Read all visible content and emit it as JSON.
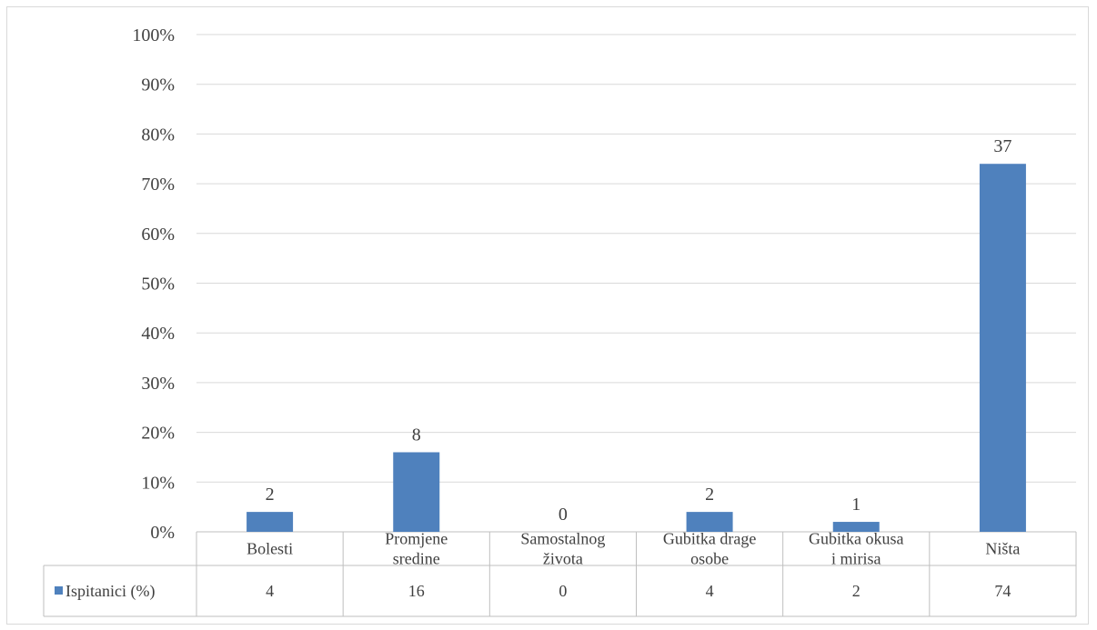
{
  "chart_data": {
    "type": "bar",
    "categories": [
      [
        "Bolesti"
      ],
      [
        "Promjene",
        "sredine"
      ],
      [
        "Samostalnog",
        "života"
      ],
      [
        "Gubitka drage",
        "osobe"
      ],
      [
        "Gubitka okusa",
        "i mirisa"
      ],
      [
        "Ništa"
      ]
    ],
    "series": [
      {
        "name": "Ispitanici (%)",
        "values": [
          4,
          16,
          0,
          4,
          2,
          74
        ],
        "data_labels": [
          "2",
          "8",
          "0",
          "2",
          "1",
          "37"
        ],
        "table_values": [
          "4",
          "16",
          "0",
          "4",
          "2",
          "74"
        ],
        "color": "#4f81bd"
      }
    ],
    "ylim": [
      0,
      100
    ],
    "yticks": [
      0,
      10,
      20,
      30,
      40,
      50,
      60,
      70,
      80,
      90,
      100
    ],
    "ytick_labels": [
      "0%",
      "10%",
      "20%",
      "30%",
      "40%",
      "50%",
      "60%",
      "70%",
      "80%",
      "90%",
      "100%"
    ],
    "grid": true,
    "legend": "data-table"
  }
}
